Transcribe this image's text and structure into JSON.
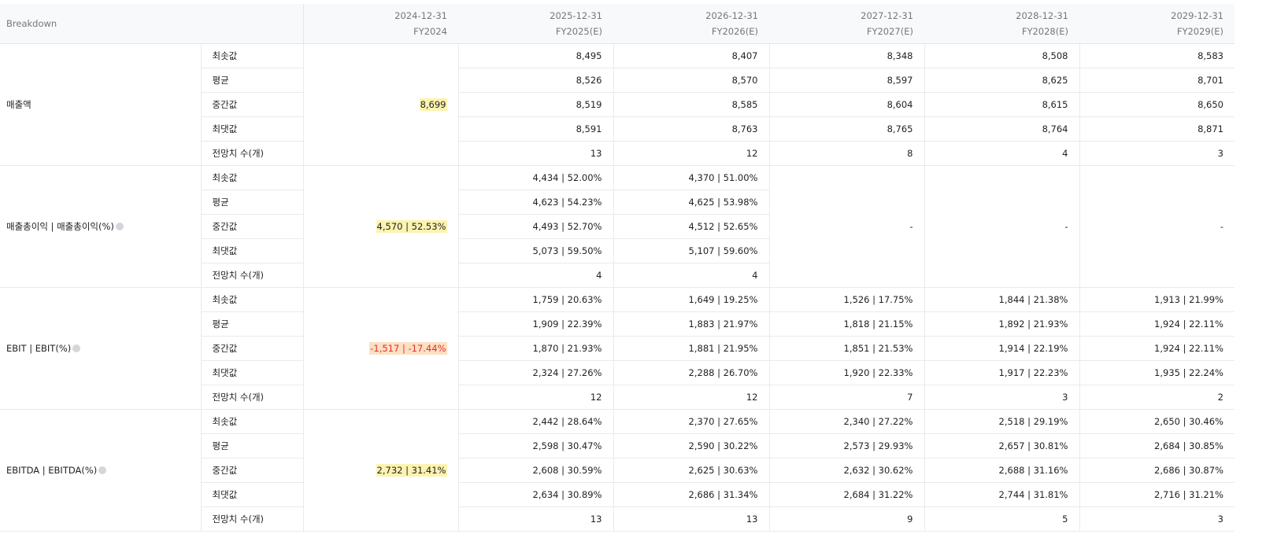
{
  "header": {
    "breakdown": "Breakdown",
    "columns": [
      {
        "date": "2024-12-31",
        "fy": "FY2024"
      },
      {
        "date": "2025-12-31",
        "fy": "FY2025(E)"
      },
      {
        "date": "2026-12-31",
        "fy": "FY2026(E)"
      },
      {
        "date": "2027-12-31",
        "fy": "FY2027(E)"
      },
      {
        "date": "2028-12-31",
        "fy": "FY2028(E)"
      },
      {
        "date": "2029-12-31",
        "fy": "FY2029(E)"
      }
    ]
  },
  "groups": [
    {
      "label": "매출액",
      "current": "8,699",
      "tone": "positive",
      "help_icon": false,
      "rows": [
        {
          "label": "최솟값",
          "values": [
            "8,495",
            "8,407",
            "8,348",
            "8,508",
            "8,583"
          ]
        },
        {
          "label": "평균",
          "values": [
            "8,526",
            "8,570",
            "8,597",
            "8,625",
            "8,701"
          ]
        },
        {
          "label": "중간값",
          "values": [
            "8,519",
            "8,585",
            "8,604",
            "8,615",
            "8,650"
          ]
        },
        {
          "label": "최댓값",
          "values": [
            "8,591",
            "8,763",
            "8,765",
            "8,764",
            "8,871"
          ]
        },
        {
          "label": "전망치 수(개)",
          "values": [
            "13",
            "12",
            "8",
            "4",
            "3"
          ]
        }
      ]
    },
    {
      "label": "매출총이익 | 매출총이익(%)",
      "current": "4,570 | 52.53%",
      "tone": "positive",
      "help_icon": true,
      "empty_columns": [
        "-",
        "-",
        "-"
      ],
      "rows": [
        {
          "label": "최솟값",
          "values": [
            "4,434 | 52.00%",
            "4,370 | 51.00%"
          ]
        },
        {
          "label": "평균",
          "values": [
            "4,623 | 54.23%",
            "4,625 | 53.98%"
          ]
        },
        {
          "label": "중간값",
          "values": [
            "4,493 | 52.70%",
            "4,512 | 52.65%"
          ]
        },
        {
          "label": "최댓값",
          "values": [
            "5,073 | 59.50%",
            "5,107 | 59.60%"
          ]
        },
        {
          "label": "전망치 수(개)",
          "values": [
            "4",
            "4"
          ]
        }
      ]
    },
    {
      "label": "EBIT | EBIT(%)",
      "current": "-1,517 | -17.44%",
      "tone": "negative",
      "help_icon": true,
      "rows": [
        {
          "label": "최솟값",
          "values": [
            "1,759 | 20.63%",
            "1,649 | 19.25%",
            "1,526 | 17.75%",
            "1,844 | 21.38%",
            "1,913 | 21.99%"
          ]
        },
        {
          "label": "평균",
          "values": [
            "1,909 | 22.39%",
            "1,883 | 21.97%",
            "1,818 | 21.15%",
            "1,892 | 21.93%",
            "1,924 | 22.11%"
          ]
        },
        {
          "label": "중간값",
          "values": [
            "1,870 | 21.93%",
            "1,881 | 21.95%",
            "1,851 | 21.53%",
            "1,914 | 22.19%",
            "1,924 | 22.11%"
          ]
        },
        {
          "label": "최댓값",
          "values": [
            "2,324 | 27.26%",
            "2,288 | 26.70%",
            "1,920 | 22.33%",
            "1,917 | 22.23%",
            "1,935 | 22.24%"
          ]
        },
        {
          "label": "전망치 수(개)",
          "values": [
            "12",
            "12",
            "7",
            "3",
            "2"
          ]
        }
      ]
    },
    {
      "label": "EBITDA | EBITDA(%)",
      "current": "2,732 | 31.41%",
      "tone": "positive",
      "help_icon": true,
      "rows": [
        {
          "label": "최솟값",
          "values": [
            "2,442 | 28.64%",
            "2,370 | 27.65%",
            "2,340 | 27.22%",
            "2,518 | 29.19%",
            "2,650 | 30.46%"
          ]
        },
        {
          "label": "평균",
          "values": [
            "2,598 | 30.47%",
            "2,590 | 30.22%",
            "2,573 | 29.93%",
            "2,657 | 30.81%",
            "2,684 | 30.85%"
          ]
        },
        {
          "label": "중간값",
          "values": [
            "2,608 | 30.59%",
            "2,625 | 30.63%",
            "2,632 | 30.62%",
            "2,688 | 31.16%",
            "2,686 | 30.87%"
          ]
        },
        {
          "label": "최댓값",
          "values": [
            "2,634 | 30.89%",
            "2,686 | 31.34%",
            "2,684 | 31.22%",
            "2,744 | 31.81%",
            "2,716 | 31.21%"
          ]
        },
        {
          "label": "전망치 수(개)",
          "values": [
            "13",
            "13",
            "9",
            "5",
            "3"
          ]
        }
      ]
    }
  ]
}
